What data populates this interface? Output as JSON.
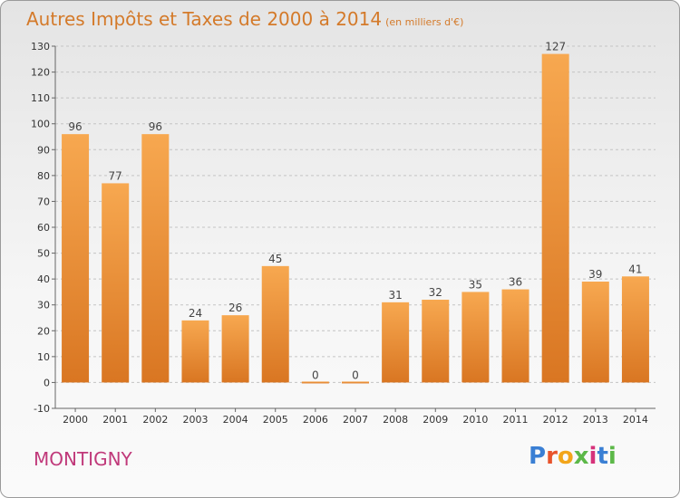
{
  "title": "Autres Impôts et Taxes de 2000 à 2014",
  "title_unit": "(en milliers d'€)",
  "town": "MONTIGNY",
  "brand": "Proxiti",
  "colors": {
    "bar_light": "#f7a850",
    "bar_dark": "#d97622",
    "title": "#d47a2a",
    "town": "#c0397a",
    "grid": "#c4c4c4"
  },
  "chart_data": {
    "type": "bar",
    "categories": [
      "2000",
      "2001",
      "2002",
      "2003",
      "2004",
      "2005",
      "2006",
      "2007",
      "2008",
      "2009",
      "2010",
      "2011",
      "2012",
      "2013",
      "2014"
    ],
    "values": [
      96,
      77,
      96,
      24,
      26,
      45,
      0,
      0,
      31,
      32,
      35,
      36,
      127,
      39,
      41
    ],
    "data_labels": [
      "96",
      "77",
      "96",
      "24",
      "26",
      "45",
      "0",
      "0",
      "31",
      "32",
      "35",
      "36",
      "127",
      "39",
      "41"
    ],
    "ylim": [
      -10,
      130
    ],
    "yticks": [
      -10,
      0,
      10,
      20,
      30,
      40,
      50,
      60,
      70,
      80,
      90,
      100,
      110,
      120,
      130
    ],
    "grid": "horizontal dashed",
    "xlabel": "",
    "ylabel": ""
  }
}
